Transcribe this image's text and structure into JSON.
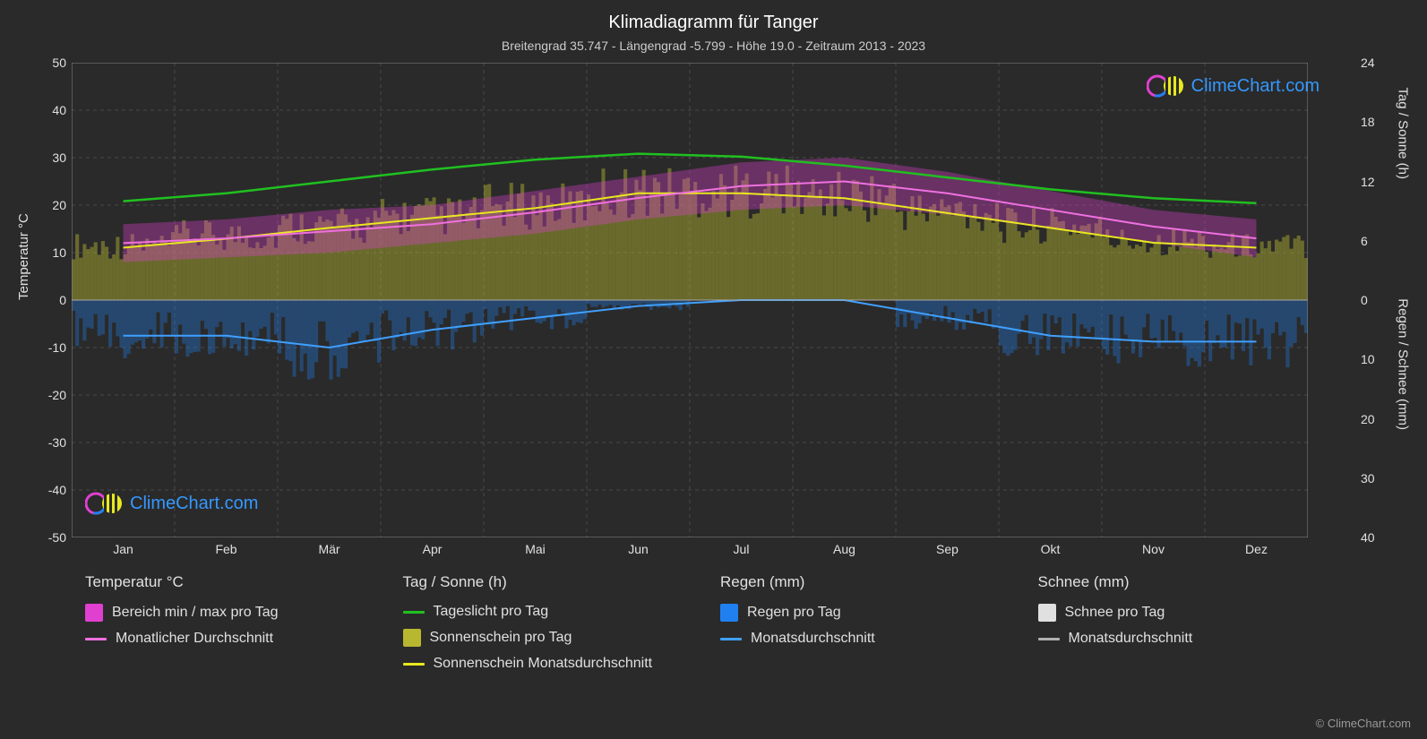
{
  "title": "Klimadiagramm für Tanger",
  "subtitle": "Breitengrad 35.747 - Längengrad -5.799 - Höhe 19.0 - Zeitraum 2013 - 2023",
  "axis_left_label": "Temperatur °C",
  "axis_right_top_label": "Tag / Sonne (h)",
  "axis_right_bot_label": "Regen / Schnee (mm)",
  "months": [
    "Jan",
    "Feb",
    "Mär",
    "Apr",
    "Mai",
    "Jun",
    "Jul",
    "Aug",
    "Sep",
    "Okt",
    "Nov",
    "Dez"
  ],
  "chart": {
    "background": "#2a2a2a",
    "grid_color": "#666666",
    "grid_width": 0.5,
    "border_color": "#888888",
    "y_left": {
      "min": -50,
      "max": 50,
      "step": 10
    },
    "y_right_top": {
      "min": 0,
      "max": 24,
      "step": 6
    },
    "y_right_bot": {
      "min": 0,
      "max": 40,
      "step": 10
    },
    "colors": {
      "temp_range": "#e040d0",
      "temp_avg": "#f070e0",
      "daylight": "#20c020",
      "sun_bars": "#b8b830",
      "sun_avg": "#e8e820",
      "rain_bars": "#2080f0",
      "rain_avg": "#40a0ff",
      "snow_bars": "#e0e0e0",
      "snow_avg": "#b0b0b0"
    },
    "series": {
      "daylight_h": [
        10.0,
        10.8,
        12.0,
        13.2,
        14.2,
        14.8,
        14.5,
        13.6,
        12.4,
        11.2,
        10.3,
        9.8
      ],
      "sunshine_h": [
        5.5,
        6.5,
        7.5,
        8.5,
        9.5,
        11.0,
        11.0,
        10.5,
        9.0,
        7.5,
        6.0,
        5.5
      ],
      "sun_avg_h": [
        5.3,
        6.2,
        7.3,
        8.3,
        9.3,
        10.8,
        10.8,
        10.3,
        8.8,
        7.3,
        5.8,
        5.3
      ],
      "temp_min_c": [
        8,
        9,
        10,
        12,
        14,
        17,
        19,
        20,
        18,
        15,
        12,
        9
      ],
      "temp_max_c": [
        16,
        17,
        19,
        20,
        23,
        26,
        29,
        30,
        27,
        23,
        19,
        17
      ],
      "temp_avg_c": [
        12,
        13,
        14.5,
        16,
        18.5,
        21.5,
        24,
        25,
        22.5,
        19,
        15.5,
        13
      ],
      "rain_mm": [
        6,
        6,
        8,
        5,
        3,
        1,
        0,
        0,
        3,
        6,
        7,
        7
      ]
    }
  },
  "legend": {
    "col1_title": "Temperatur °C",
    "col1_items": [
      {
        "type": "box",
        "key": "temp_range",
        "label": "Bereich min / max pro Tag"
      },
      {
        "type": "line",
        "key": "temp_avg",
        "label": "Monatlicher Durchschnitt"
      }
    ],
    "col2_title": "Tag / Sonne (h)",
    "col2_items": [
      {
        "type": "line",
        "key": "daylight",
        "label": "Tageslicht pro Tag"
      },
      {
        "type": "box",
        "key": "sun_bars",
        "label": "Sonnenschein pro Tag"
      },
      {
        "type": "line",
        "key": "sun_avg",
        "label": "Sonnenschein Monatsdurchschnitt"
      }
    ],
    "col3_title": "Regen (mm)",
    "col3_items": [
      {
        "type": "box",
        "key": "rain_bars",
        "label": "Regen pro Tag"
      },
      {
        "type": "line",
        "key": "rain_avg",
        "label": "Monatsdurchschnitt"
      }
    ],
    "col4_title": "Schnee (mm)",
    "col4_items": [
      {
        "type": "box",
        "key": "snow_bars",
        "label": "Schnee pro Tag"
      },
      {
        "type": "line",
        "key": "snow_avg",
        "label": "Monatsdurchschnitt"
      }
    ]
  },
  "watermark_text": "ClimeChart.com",
  "credit": "© ClimeChart.com"
}
